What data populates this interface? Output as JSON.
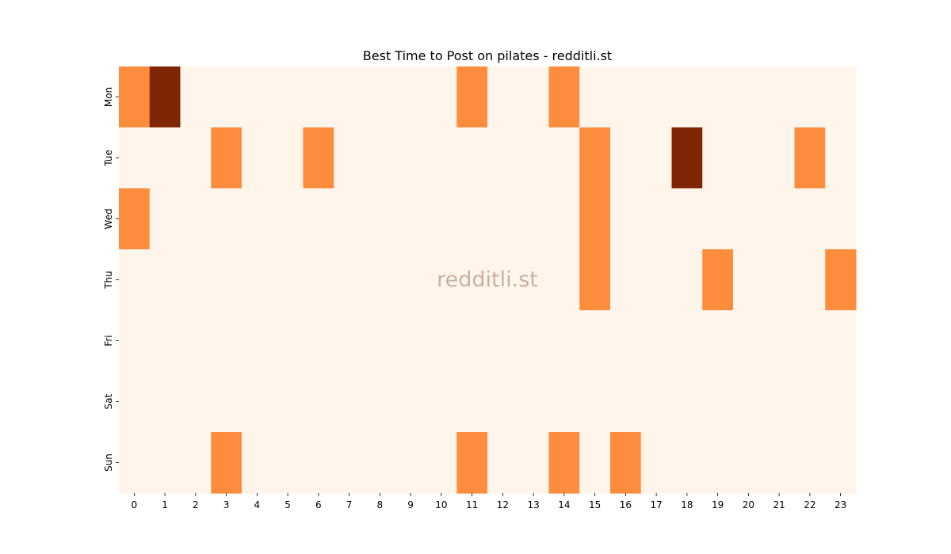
{
  "chart_data": {
    "type": "heatmap",
    "title": "Best Time to Post on pilates - redditli.st",
    "xlabel": "",
    "ylabel": "",
    "x": [
      "0",
      "1",
      "2",
      "3",
      "4",
      "5",
      "6",
      "7",
      "8",
      "9",
      "10",
      "11",
      "12",
      "13",
      "14",
      "15",
      "16",
      "17",
      "18",
      "19",
      "20",
      "21",
      "22",
      "23"
    ],
    "y": [
      "Mon",
      "Tue",
      "Wed",
      "Thu",
      "Fri",
      "Sat",
      "Sun"
    ],
    "values": [
      [
        1,
        2,
        0,
        0,
        0,
        0,
        0,
        0,
        0,
        0,
        0,
        1,
        0,
        0,
        1,
        0,
        0,
        0,
        0,
        0,
        0,
        0,
        0,
        0
      ],
      [
        0,
        0,
        0,
        1,
        0,
        0,
        1,
        0,
        0,
        0,
        0,
        0,
        0,
        0,
        0,
        1,
        0,
        0,
        2,
        0,
        0,
        0,
        1,
        0
      ],
      [
        1,
        0,
        0,
        0,
        0,
        0,
        0,
        0,
        0,
        0,
        0,
        0,
        0,
        0,
        0,
        1,
        0,
        0,
        0,
        0,
        0,
        0,
        0,
        0
      ],
      [
        0,
        0,
        0,
        0,
        0,
        0,
        0,
        0,
        0,
        0,
        0,
        0,
        0,
        0,
        0,
        1,
        0,
        0,
        0,
        1,
        0,
        0,
        0,
        1
      ],
      [
        0,
        0,
        0,
        0,
        0,
        0,
        0,
        0,
        0,
        0,
        0,
        0,
        0,
        0,
        0,
        0,
        0,
        0,
        0,
        0,
        0,
        0,
        0,
        0
      ],
      [
        0,
        0,
        0,
        0,
        0,
        0,
        0,
        0,
        0,
        0,
        0,
        0,
        0,
        0,
        0,
        0,
        0,
        0,
        0,
        0,
        0,
        0,
        0,
        0
      ],
      [
        0,
        0,
        0,
        1,
        0,
        0,
        0,
        0,
        0,
        0,
        0,
        1,
        0,
        0,
        1,
        0,
        1,
        0,
        0,
        0,
        0,
        0,
        0,
        0
      ]
    ],
    "colormap": "Oranges",
    "colors": [
      "#fff5eb",
      "#fd8d3c",
      "#7f2704"
    ],
    "grid": false,
    "colorbar": false,
    "watermark": "redditli.st"
  }
}
